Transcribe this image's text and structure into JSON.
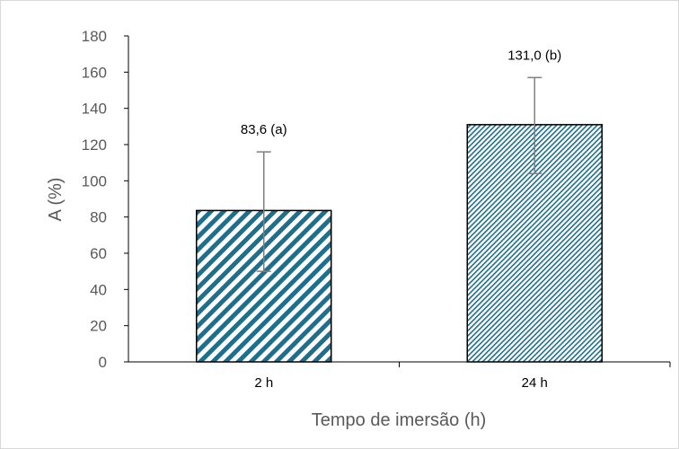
{
  "chart_data": {
    "type": "bar",
    "categories": [
      "2 h",
      "24 h"
    ],
    "values": [
      83.6,
      131.0
    ],
    "error_bars": [
      {
        "low": 50,
        "high": 116
      },
      {
        "low": 104,
        "high": 157
      }
    ],
    "data_labels": [
      "83,6 (a)",
      "131,0 (b)"
    ],
    "xlabel": "Tempo de imersão (h)",
    "ylabel": "A (%)",
    "ylim": [
      0,
      180
    ],
    "yticks": [
      0,
      20,
      40,
      60,
      80,
      100,
      120,
      140,
      160,
      180
    ],
    "grid": false,
    "legend": "none",
    "bar_patterns": [
      "wide-diagonal-stripes",
      "fine-diagonal-stripes"
    ],
    "colors": {
      "bar_stripe": "#1f6e8c",
      "bar_edge": "#000000",
      "error_bar": "#7f7f7f",
      "axis": "#000000"
    }
  }
}
